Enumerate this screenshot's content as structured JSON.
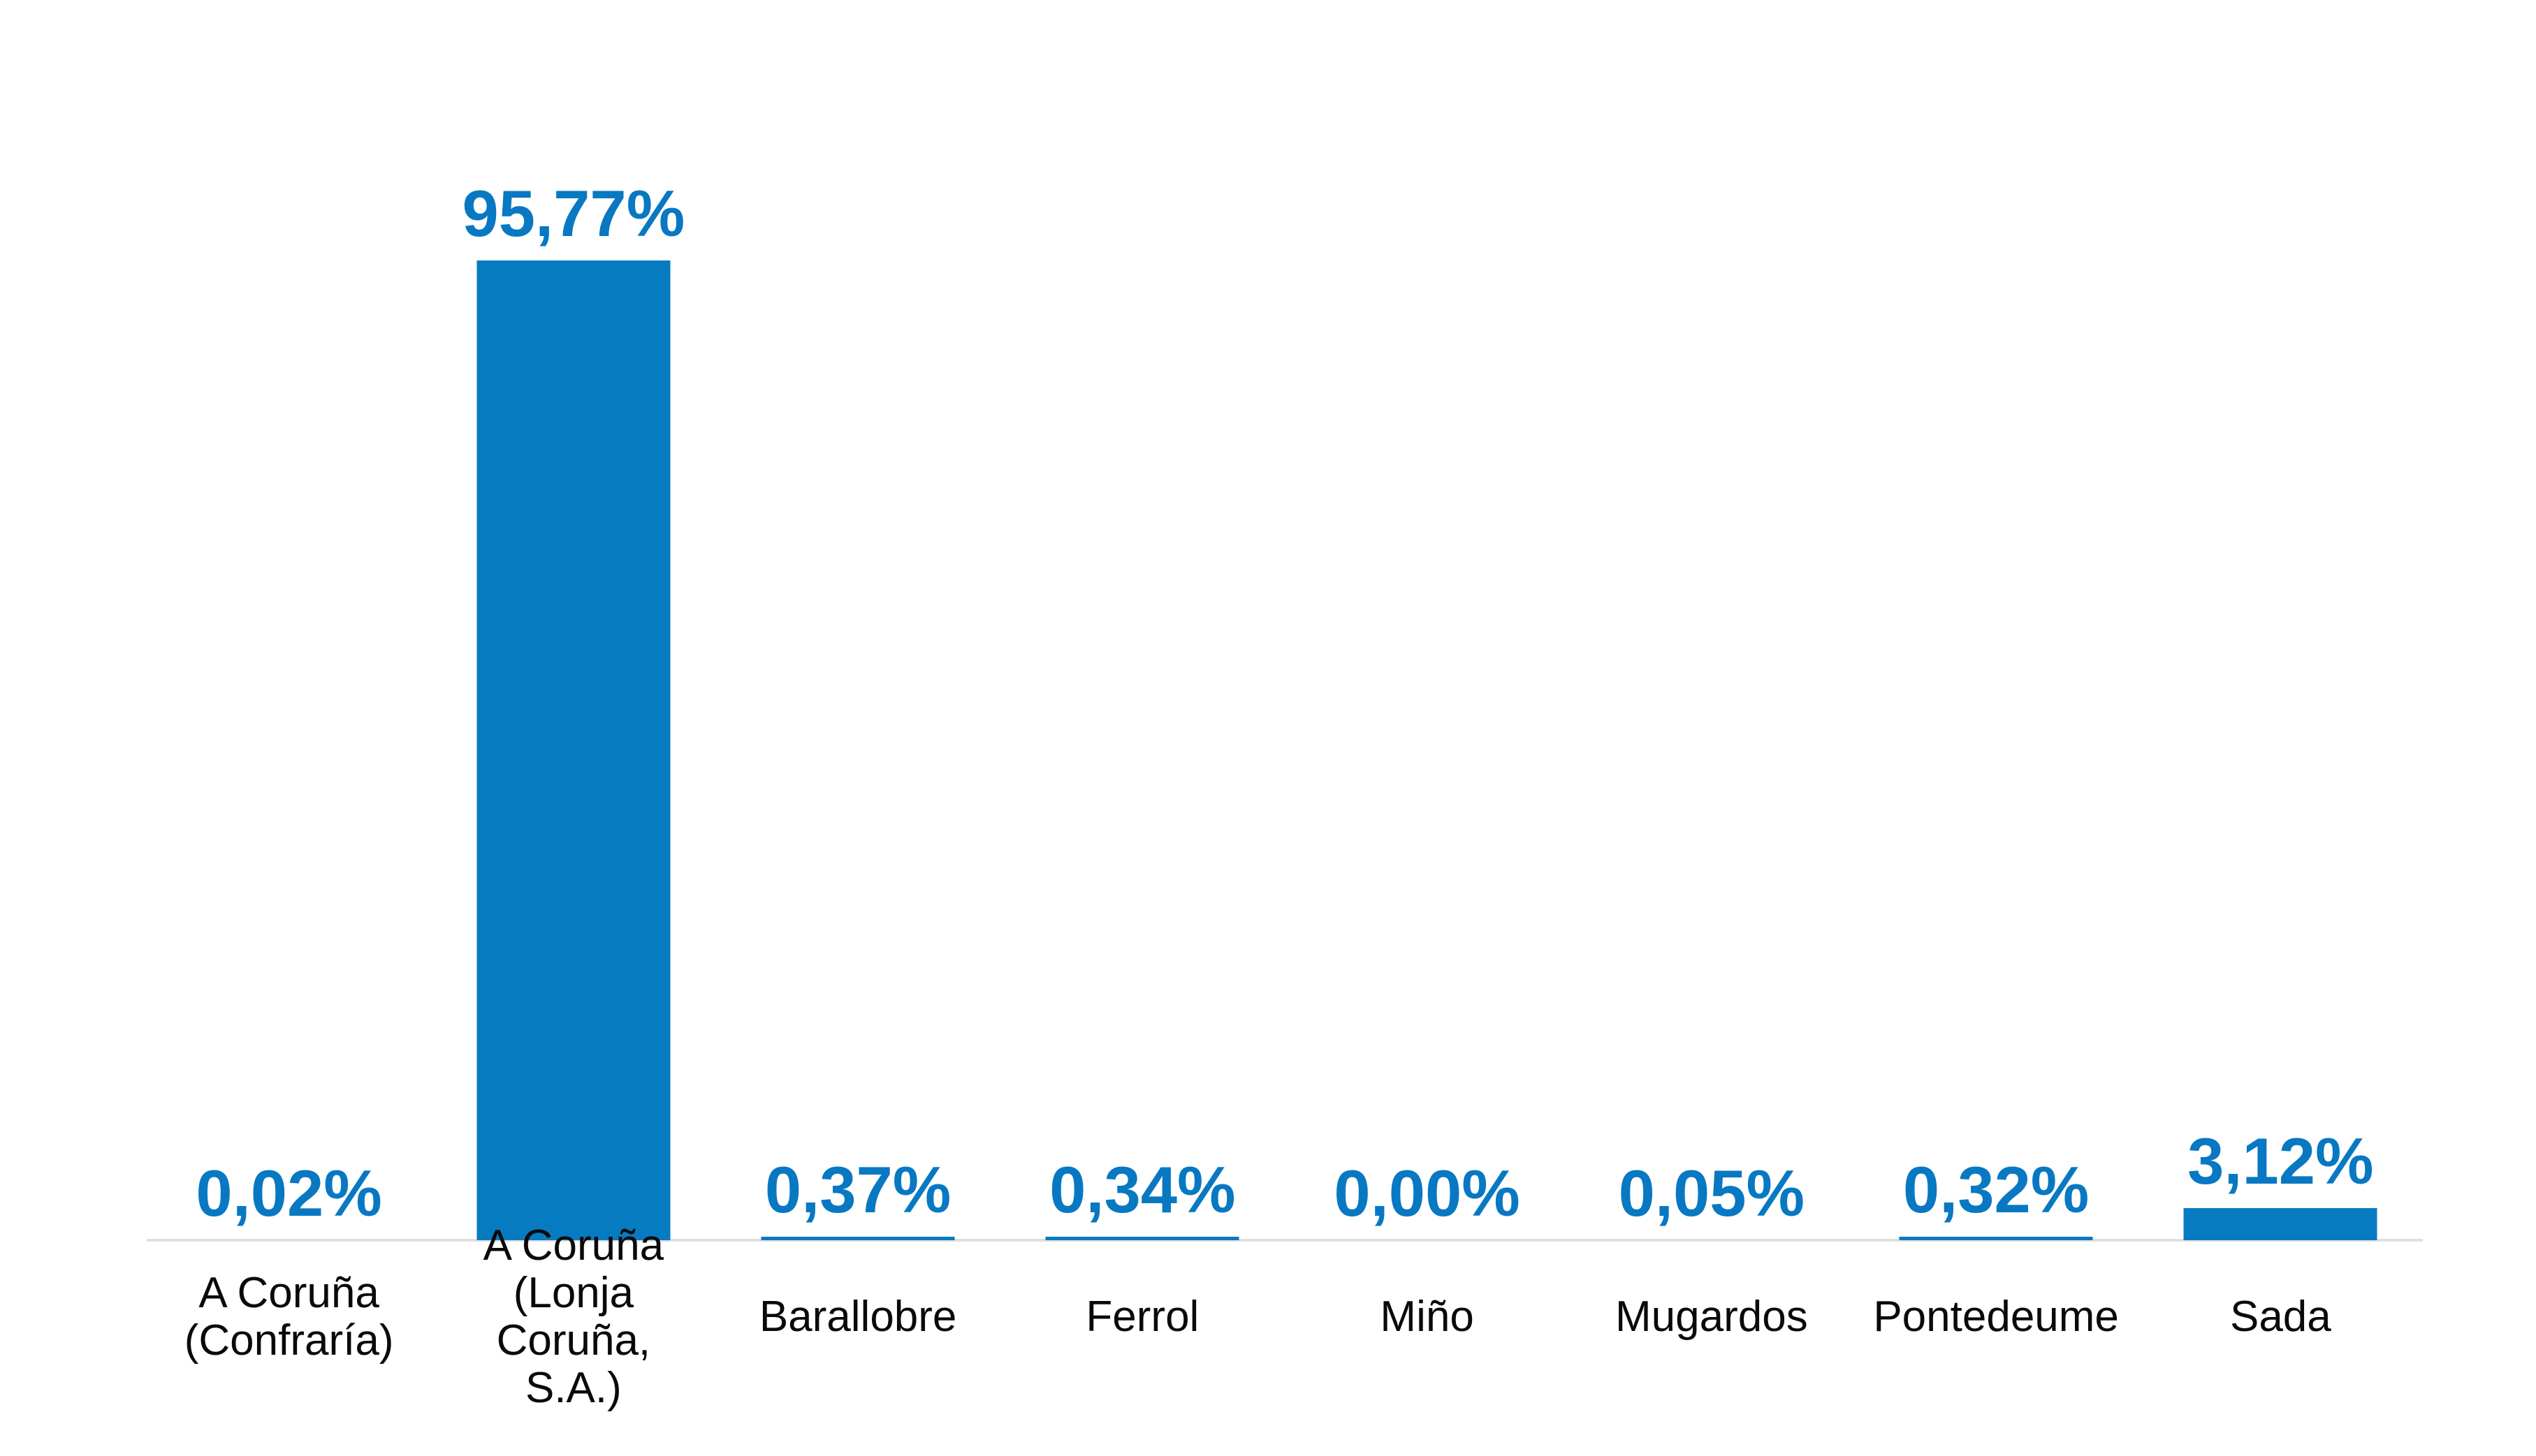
{
  "chart_data": {
    "type": "bar",
    "title": "",
    "categories": [
      "A Coruña (Confraría)",
      "A Coruña (Lonja Coruña, S.A.)",
      "Barallobre",
      "Ferrol",
      "Miño",
      "Mugardos",
      "Pontedeume",
      "Sada"
    ],
    "category_display": [
      "A Coruña\n(Confraría)",
      "A Coruña\n(Lonja Coruña,\nS.A.)",
      "Barallobre",
      "Ferrol",
      "Miño",
      "Mugardos",
      "Pontedeume",
      "Sada"
    ],
    "values": [
      0.02,
      95.77,
      0.37,
      0.34,
      0.0,
      0.05,
      0.32,
      3.12
    ],
    "value_labels": [
      "0,02%",
      "95,77%",
      "0,37%",
      "0,34%",
      "0,00%",
      "0,05%",
      "0,32%",
      "3,12%"
    ],
    "unit": "%",
    "ylabel": "",
    "xlabel": "",
    "grid": false,
    "legend_position": "none",
    "y_axis_visible": false,
    "x_axis_line_visible": true
  },
  "colors": {
    "bar": "#077bc1",
    "value_label": "#0878c2",
    "category_label": "#0a0a0a",
    "axis_line": "#e0e0e0",
    "background": "#ffffff"
  }
}
